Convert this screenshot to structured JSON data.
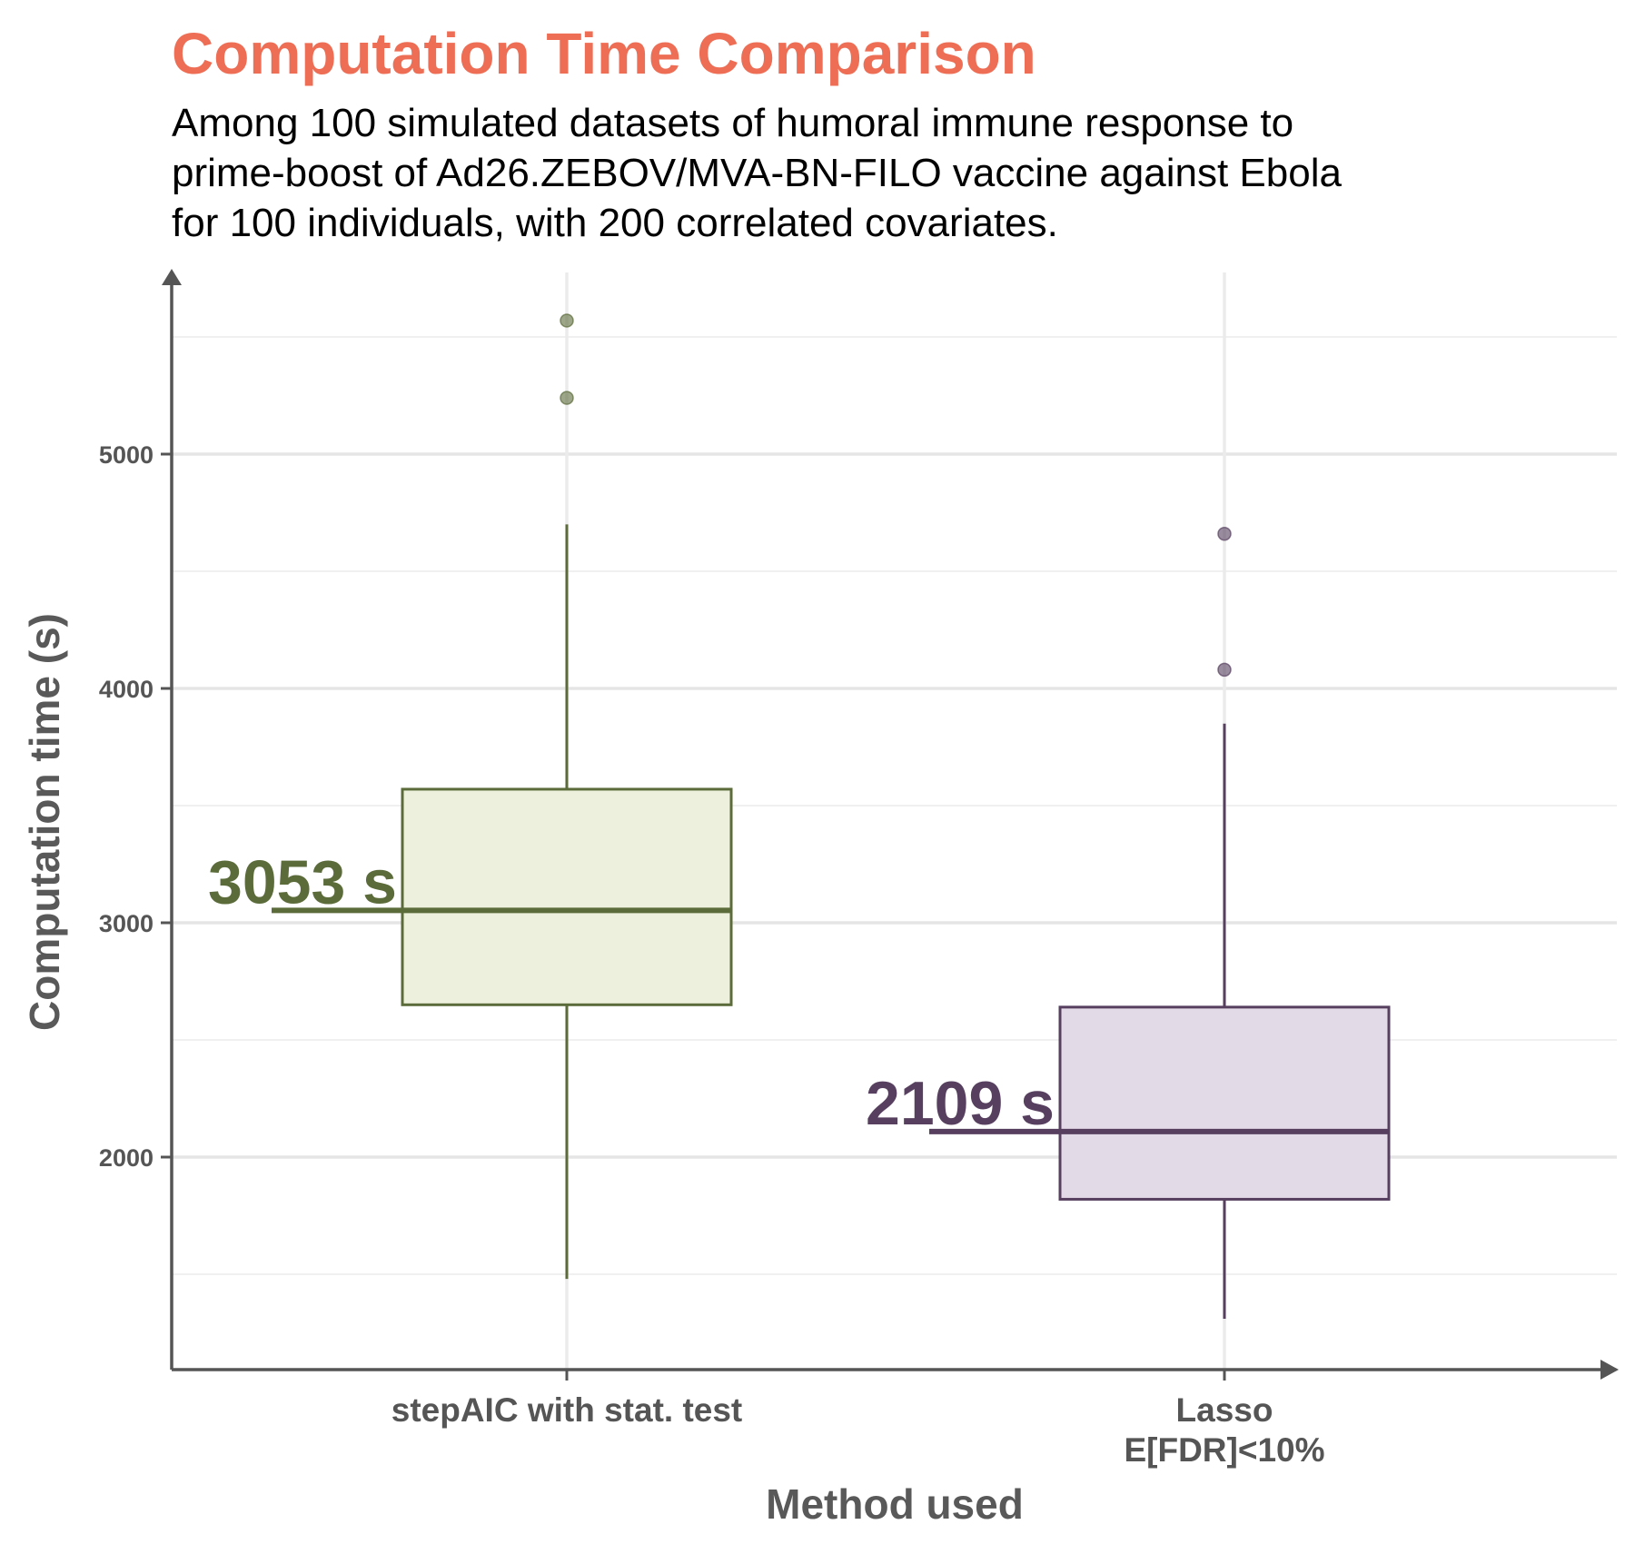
{
  "chart_data": {
    "type": "box",
    "title": "Computation Time Comparison",
    "subtitle": [
      "Among 100 simulated datasets of humoral immune response to",
      "prime-boost of Ad26.ZEBOV/MVA-BN-FILO vaccine against Ebola",
      "for 100 individuals, with 200 correlated covariates."
    ],
    "xlabel": "Method used",
    "ylabel": "Computation time (s)",
    "ylim": [
      1100,
      5600
    ],
    "yticks": [
      2000,
      3000,
      4000,
      5000
    ],
    "grid": true,
    "categories": [
      {
        "label": [
          "stepAIC with stat. test"
        ],
        "color": "#5B6B3A",
        "fill": "#EDF0DC",
        "whisker_low": 1480,
        "q1": 2650,
        "median": 3053,
        "q3": 3570,
        "whisker_high": 4700,
        "outliers": [
          5240,
          5570
        ],
        "median_label": "3053 s"
      },
      {
        "label": [
          "Lasso",
          "E[FDR]<10%"
        ],
        "color": "#57405F",
        "fill": "#E3DAE7",
        "whisker_low": 1310,
        "q1": 1820,
        "median": 2109,
        "q3": 2640,
        "whisker_high": 3850,
        "outliers": [
          4080,
          4660
        ],
        "median_label": "2109 s"
      }
    ]
  }
}
